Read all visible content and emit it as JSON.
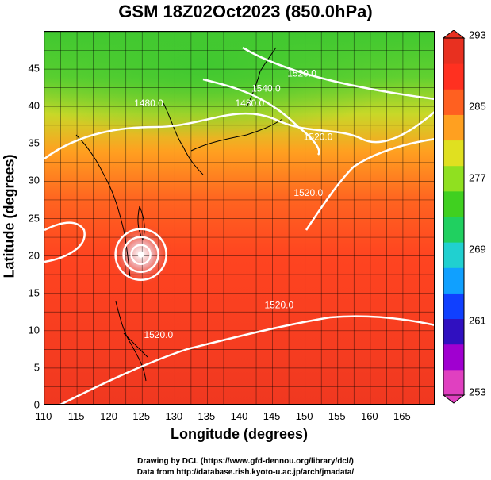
{
  "title": "GSM 18Z02Oct2023 (850.0hPa)",
  "x_axis": {
    "label": "Longitude (degrees)",
    "ticks": [
      "110",
      "115",
      "120",
      "125",
      "130",
      "135",
      "140",
      "145",
      "150",
      "155",
      "160",
      "165"
    ],
    "range": [
      110,
      170
    ]
  },
  "y_axis": {
    "label": "Latitude  (degrees)",
    "ticks": [
      "0",
      "5",
      "10",
      "15",
      "20",
      "25",
      "30",
      "35",
      "40",
      "45"
    ],
    "range": [
      0,
      50
    ]
  },
  "colorbar": {
    "labels": [
      "293",
      "285",
      "277",
      "269",
      "261",
      "253"
    ],
    "range": [
      253,
      293
    ],
    "colors": [
      "#e040c0",
      "#a000d0",
      "#3010c0",
      "#1040ff",
      "#10a0ff",
      "#20d0d0",
      "#20d060",
      "#40d020",
      "#90e020",
      "#e0e020",
      "#ffa020",
      "#ff6020",
      "#ff3020",
      "#e83020"
    ]
  },
  "contour_labels": [
    {
      "text": "1480.0",
      "lon": 141.5,
      "lat": 40.0
    },
    {
      "text": "1480.0",
      "lon": 126.0,
      "lat": 40.0
    },
    {
      "text": "1540.0",
      "lon": 144.0,
      "lat": 42.0
    },
    {
      "text": "1520.0",
      "lon": 149.5,
      "lat": 44.0
    },
    {
      "text": "1520.0",
      "lon": 152.0,
      "lat": 35.5
    },
    {
      "text": "1520.0",
      "lon": 146.0,
      "lat": 13.0
    },
    {
      "text": "1520.0",
      "lon": 127.5,
      "lat": 9.0
    },
    {
      "text": "1520.0",
      "lon": 150.5,
      "lat": 28.0
    }
  ],
  "typhoon_center": {
    "lon": 124.8,
    "lat": 20.2
  },
  "credits": {
    "line1": "Drawing by DCL (https://www.gfd-dennou.org/library/dcl/)",
    "line2": "Data from http://database.rish.kyoto-u.ac.jp/arch/jmadata/"
  }
}
